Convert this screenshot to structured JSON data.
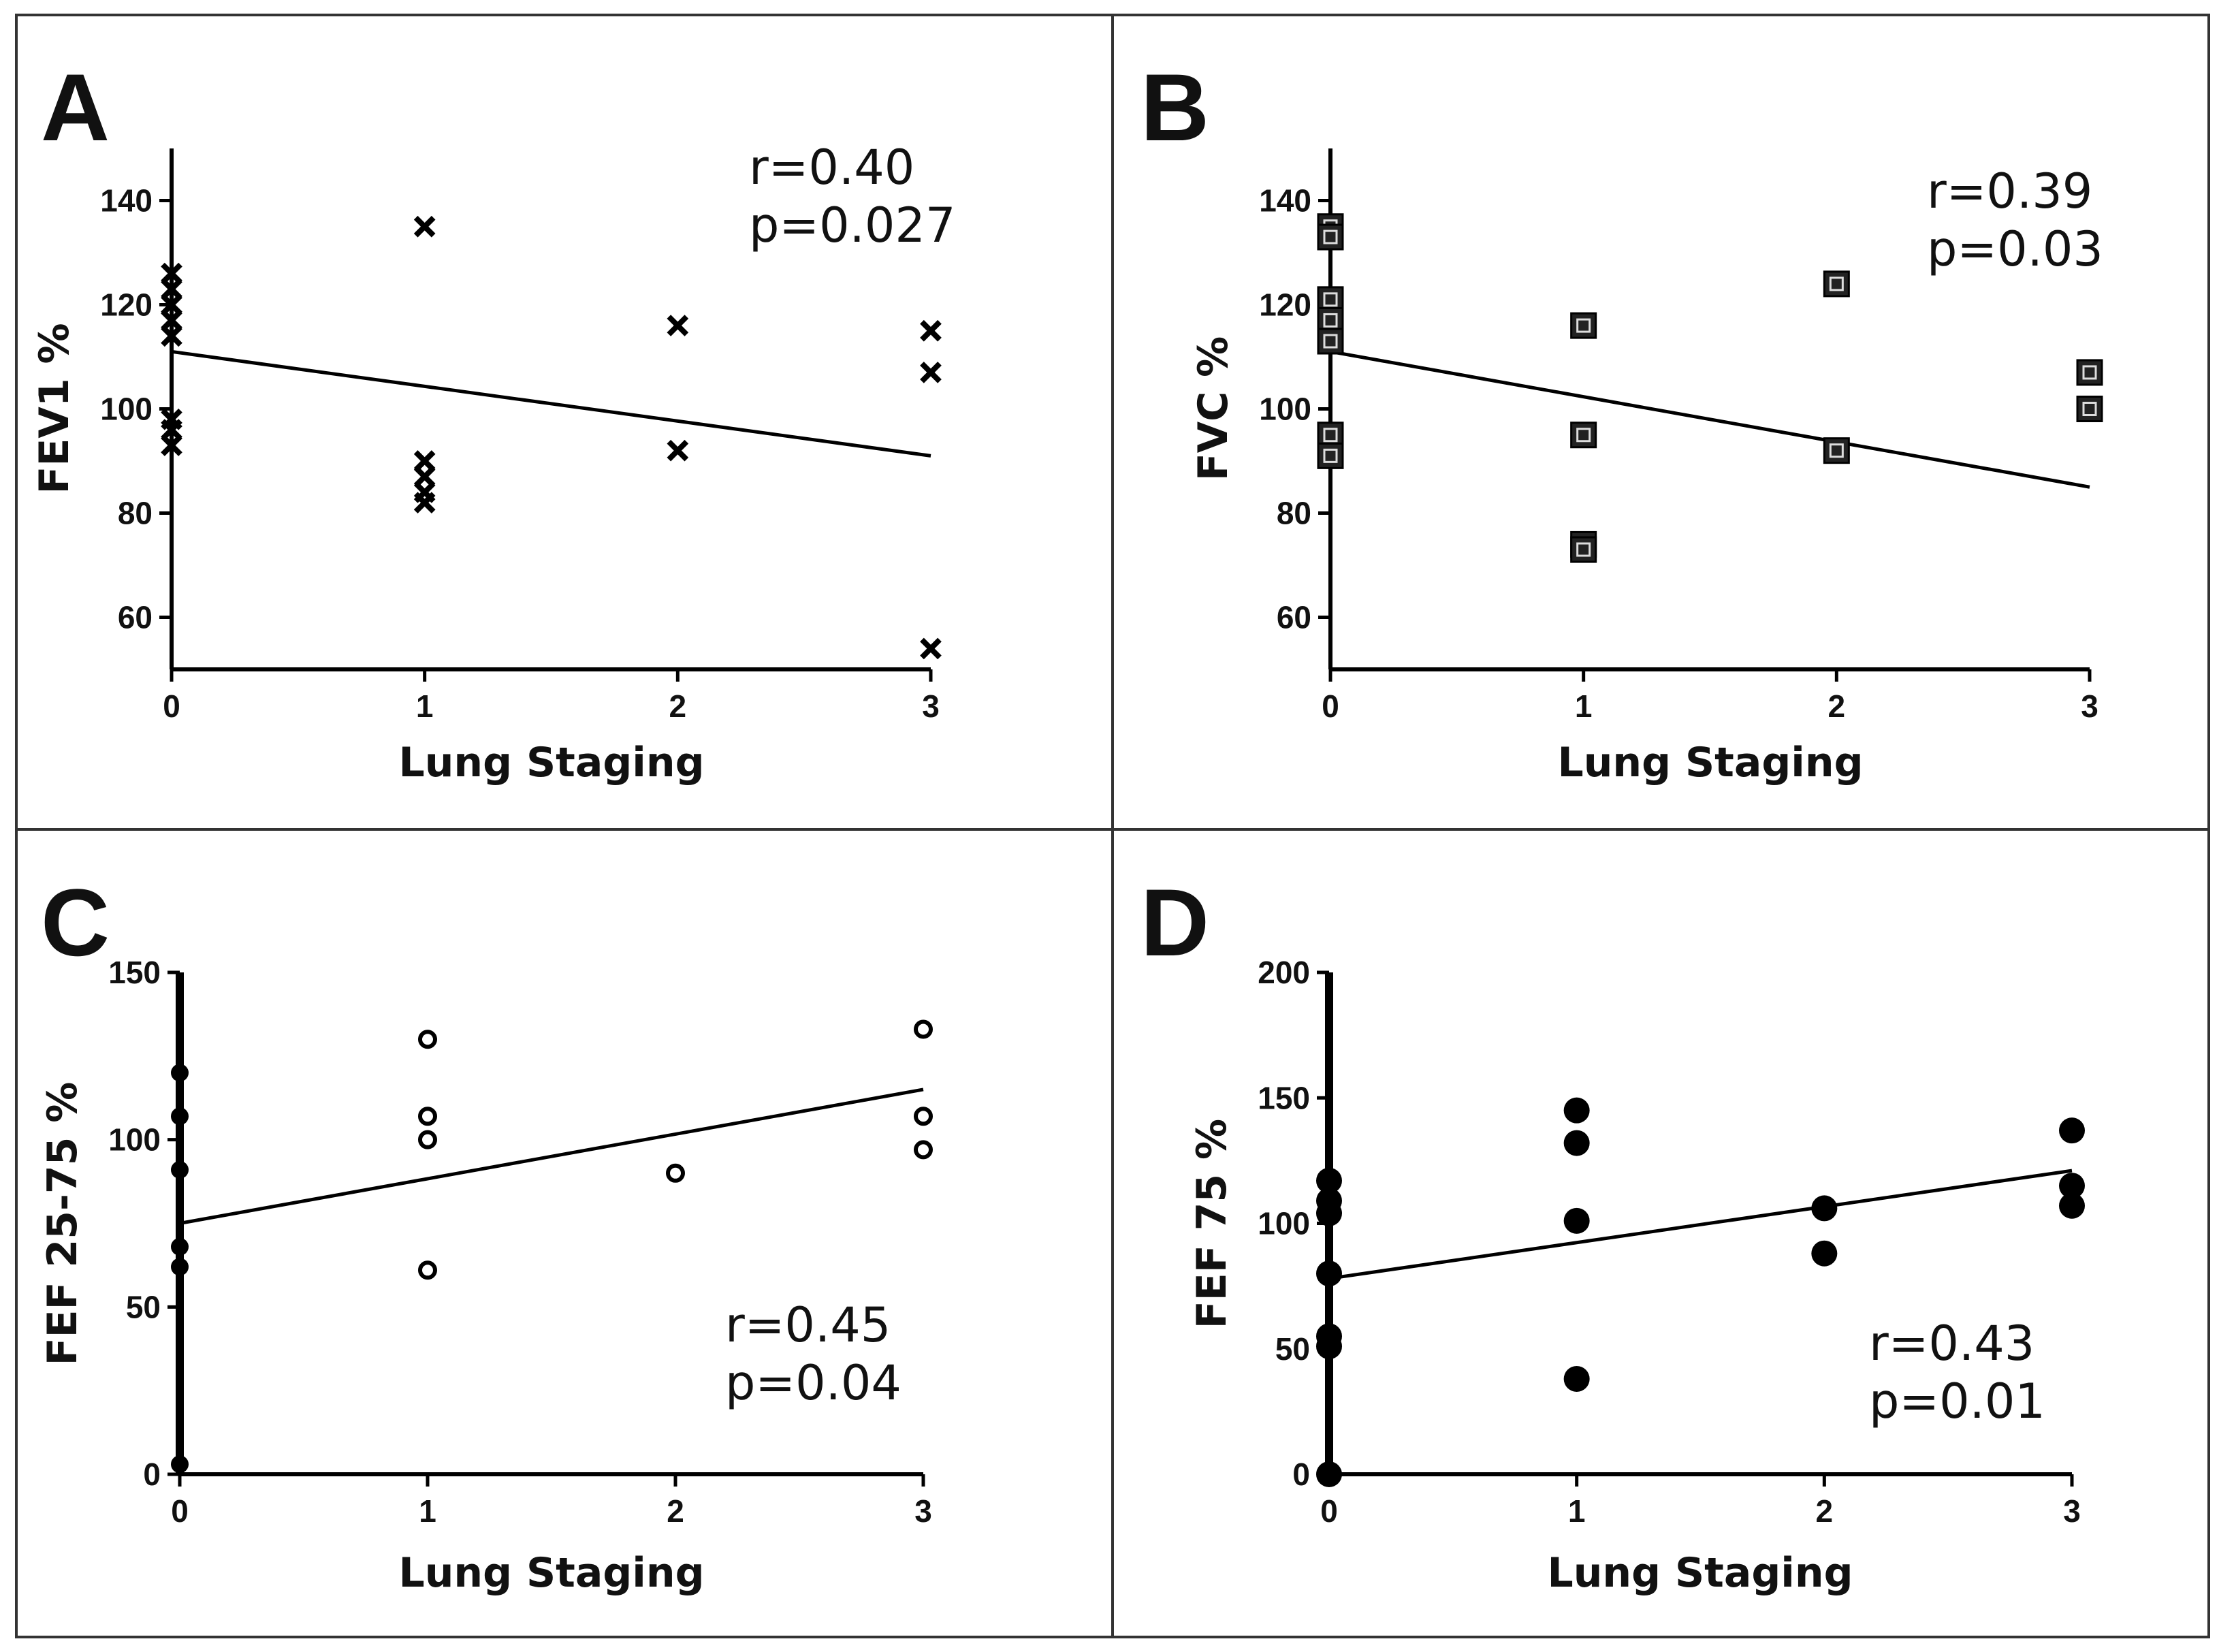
{
  "chart_data": [
    {
      "type": "scatter",
      "panel_label": "A",
      "marker": "x",
      "xlabel": "Lung Staging",
      "ylabel": "FEV1 %",
      "xlim": [
        0,
        3
      ],
      "ylim": [
        50,
        150
      ],
      "xticks": [
        "0",
        "1",
        "2",
        "3"
      ],
      "yticks": [
        "60",
        "80",
        "100",
        "120",
        "140"
      ],
      "stats": [
        "r=0.40",
        "p=0.027"
      ],
      "points": [
        [
          0,
          126
        ],
        [
          0,
          123
        ],
        [
          0,
          120
        ],
        [
          0,
          117
        ],
        [
          0,
          114
        ],
        [
          0,
          98
        ],
        [
          0,
          96
        ],
        [
          0,
          93
        ],
        [
          1,
          135
        ],
        [
          1,
          90
        ],
        [
          1,
          87
        ],
        [
          1,
          84
        ],
        [
          1,
          82
        ],
        [
          2,
          116
        ],
        [
          2,
          92
        ],
        [
          3,
          115
        ],
        [
          3,
          107
        ],
        [
          3,
          54
        ]
      ],
      "fit": [
        [
          0,
          111
        ],
        [
          3,
          91
        ]
      ]
    },
    {
      "type": "scatter",
      "panel_label": "B",
      "marker": "square",
      "xlabel": "Lung Staging",
      "ylabel": "FVC %",
      "xlim": [
        0,
        3
      ],
      "ylim": [
        50,
        150
      ],
      "xticks": [
        "0",
        "1",
        "2",
        "3"
      ],
      "yticks": [
        "60",
        "80",
        "100",
        "120",
        "140"
      ],
      "stats": [
        "r=0.39",
        "p=0.03"
      ],
      "points": [
        [
          0,
          135
        ],
        [
          0,
          133
        ],
        [
          0,
          121
        ],
        [
          0,
          117
        ],
        [
          0,
          113
        ],
        [
          0,
          95
        ],
        [
          0,
          91
        ],
        [
          1,
          116
        ],
        [
          1,
          95
        ],
        [
          1,
          74
        ],
        [
          1,
          73
        ],
        [
          2,
          124
        ],
        [
          2,
          92
        ],
        [
          3,
          107
        ],
        [
          3,
          100
        ]
      ],
      "fit": [
        [
          0,
          111
        ],
        [
          3,
          85
        ]
      ]
    },
    {
      "type": "scatter",
      "panel_label": "C",
      "marker": "open-circle",
      "xlabel": "Lung Staging",
      "ylabel": "FEF 25-75 %",
      "xlim": [
        0,
        3
      ],
      "ylim": [
        0,
        150
      ],
      "xticks": [
        "0",
        "1",
        "2",
        "3"
      ],
      "yticks": [
        "0",
        "50",
        "100",
        "150"
      ],
      "stats": [
        "r=0.45",
        "p=0.04"
      ],
      "points": [
        [
          0,
          120
        ],
        [
          0,
          107
        ],
        [
          0,
          91
        ],
        [
          0,
          68
        ],
        [
          0,
          62
        ],
        [
          0,
          3
        ],
        [
          1,
          130
        ],
        [
          1,
          107
        ],
        [
          1,
          100
        ],
        [
          1,
          61
        ],
        [
          2,
          90
        ],
        [
          3,
          133
        ],
        [
          3,
          107
        ],
        [
          3,
          97
        ]
      ],
      "fit": [
        [
          0,
          75
        ],
        [
          3,
          115
        ]
      ]
    },
    {
      "type": "scatter",
      "panel_label": "D",
      "marker": "filled-circle",
      "xlabel": "Lung Staging",
      "ylabel": "FEF 75 %",
      "xlim": [
        0,
        3
      ],
      "ylim": [
        0,
        200
      ],
      "xticks": [
        "0",
        "1",
        "2",
        "3"
      ],
      "yticks": [
        "0",
        "50",
        "100",
        "150",
        "200"
      ],
      "stats": [
        "r=0.43",
        "p=0.01"
      ],
      "points": [
        [
          0,
          117
        ],
        [
          0,
          109
        ],
        [
          0,
          104
        ],
        [
          0,
          80
        ],
        [
          0,
          55
        ],
        [
          0,
          51
        ],
        [
          0,
          0
        ],
        [
          1,
          145
        ],
        [
          1,
          132
        ],
        [
          1,
          101
        ],
        [
          1,
          38
        ],
        [
          2,
          106
        ],
        [
          2,
          88
        ],
        [
          3,
          137
        ],
        [
          3,
          115
        ],
        [
          3,
          107
        ]
      ],
      "fit": [
        [
          0,
          78
        ],
        [
          3,
          121
        ]
      ]
    }
  ]
}
